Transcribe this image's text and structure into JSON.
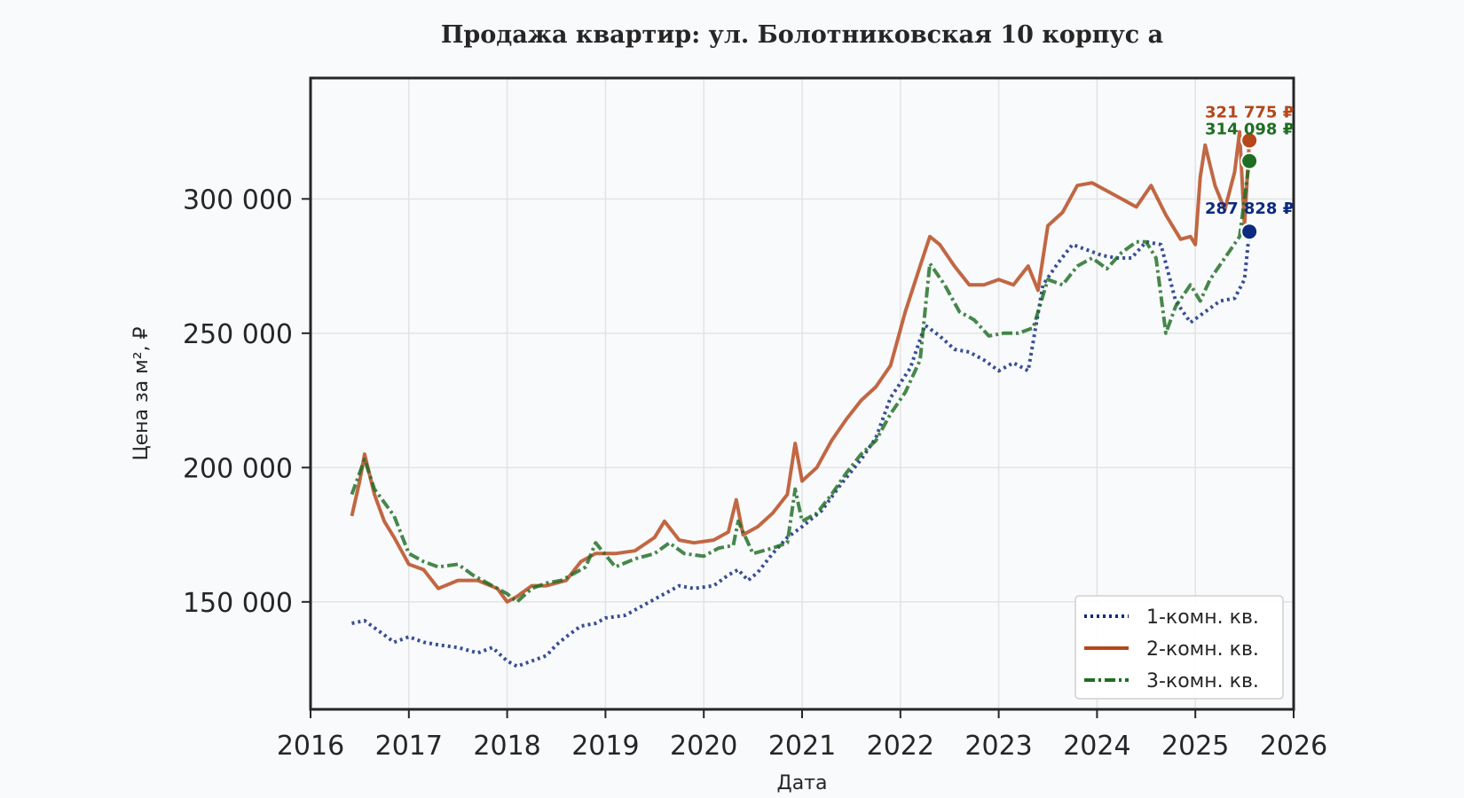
{
  "chart_data": {
    "type": "line",
    "title": "Продажа квартир: ул. Болотниковская 10 корпус а",
    "xlabel": "Дата",
    "ylabel": "Цена за м², ₽",
    "xlim": [
      2016,
      2026
    ],
    "ylim": [
      110000,
      345000
    ],
    "xticks": [
      2016,
      2017,
      2018,
      2019,
      2020,
      2021,
      2022,
      2023,
      2024,
      2025,
      2026
    ],
    "xtick_labels": [
      "2016",
      "2017",
      "2018",
      "2019",
      "2020",
      "2021",
      "2022",
      "2023",
      "2024",
      "2025",
      "2026"
    ],
    "yticks": [
      150000,
      200000,
      250000,
      300000
    ],
    "ytick_labels": [
      "150 000",
      "200 000",
      "250 000",
      "300 000"
    ],
    "grid": true,
    "legend_position": "bottom-right",
    "series": [
      {
        "name": "1-комн. кв.",
        "color": "#0d2a7e",
        "dash": "dotted",
        "x": [
          2016.42,
          2016.55,
          2016.7,
          2016.85,
          2017.0,
          2017.15,
          2017.3,
          2017.5,
          2017.7,
          2017.85,
          2018.0,
          2018.1,
          2018.25,
          2018.4,
          2018.5,
          2018.6,
          2018.75,
          2018.9,
          2019.0,
          2019.2,
          2019.4,
          2019.6,
          2019.75,
          2019.9,
          2020.1,
          2020.25,
          2020.35,
          2020.45,
          2020.55,
          2020.7,
          2020.85,
          2021.0,
          2021.2,
          2021.4,
          2021.6,
          2021.75,
          2021.9,
          2022.1,
          2022.25,
          2022.4,
          2022.55,
          2022.7,
          2022.85,
          2023.0,
          2023.15,
          2023.3,
          2023.45,
          2023.6,
          2023.75,
          2023.9,
          2024.05,
          2024.2,
          2024.35,
          2024.5,
          2024.65,
          2024.8,
          2024.95,
          2025.1,
          2025.25,
          2025.4,
          2025.5,
          2025.55
        ],
        "values": [
          142000,
          143000,
          139000,
          135000,
          137000,
          135000,
          134000,
          133000,
          131000,
          133000,
          128000,
          126000,
          128000,
          130000,
          134000,
          137000,
          141000,
          142000,
          144000,
          145000,
          149000,
          153000,
          156000,
          155000,
          156000,
          160000,
          162000,
          158000,
          161000,
          168000,
          174000,
          178000,
          184000,
          194000,
          203000,
          211000,
          226000,
          237000,
          253000,
          249000,
          244000,
          243000,
          240000,
          236000,
          239000,
          236000,
          268000,
          276000,
          283000,
          281000,
          279000,
          278000,
          278000,
          284000,
          283000,
          262000,
          254000,
          258000,
          262000,
          263000,
          270000,
          287828
        ]
      },
      {
        "name": "2-комн. кв.",
        "color": "#b5471a",
        "dash": "solid",
        "x": [
          2016.42,
          2016.5,
          2016.55,
          2016.65,
          2016.75,
          2016.85,
          2017.0,
          2017.15,
          2017.3,
          2017.5,
          2017.7,
          2017.9,
          2018.0,
          2018.1,
          2018.25,
          2018.4,
          2018.6,
          2018.75,
          2018.9,
          2019.1,
          2019.3,
          2019.5,
          2019.6,
          2019.75,
          2019.9,
          2020.1,
          2020.25,
          2020.33,
          2020.4,
          2020.55,
          2020.7,
          2020.85,
          2020.93,
          2021.0,
          2021.15,
          2021.3,
          2021.45,
          2021.6,
          2021.75,
          2021.9,
          2022.05,
          2022.2,
          2022.3,
          2022.4,
          2022.55,
          2022.7,
          2022.85,
          2023.0,
          2023.15,
          2023.3,
          2023.4,
          2023.5,
          2023.65,
          2023.8,
          2023.95,
          2024.1,
          2024.25,
          2024.4,
          2024.55,
          2024.7,
          2024.85,
          2024.95,
          2025.0,
          2025.05,
          2025.1,
          2025.2,
          2025.3,
          2025.4,
          2025.45,
          2025.5,
          2025.55
        ],
        "values": [
          182000,
          195000,
          205000,
          190000,
          180000,
          174000,
          164000,
          162000,
          155000,
          158000,
          158000,
          155000,
          150000,
          152000,
          156000,
          156000,
          158000,
          165000,
          168000,
          168000,
          169000,
          174000,
          180000,
          173000,
          172000,
          173000,
          176000,
          188000,
          175000,
          178000,
          183000,
          190000,
          209000,
          195000,
          200000,
          210000,
          218000,
          225000,
          230000,
          238000,
          258000,
          275000,
          286000,
          283000,
          275000,
          268000,
          268000,
          270000,
          268000,
          275000,
          266000,
          290000,
          295000,
          305000,
          306000,
          303000,
          300000,
          297000,
          305000,
          294000,
          285000,
          286000,
          283000,
          308000,
          320000,
          305000,
          296000,
          310000,
          325000,
          290000,
          321775
        ]
      },
      {
        "name": "3-комн. кв.",
        "color": "#1e6e23",
        "dash": "dashdot",
        "x": [
          2016.42,
          2016.55,
          2016.65,
          2016.75,
          2016.85,
          2017.0,
          2017.15,
          2017.3,
          2017.5,
          2017.65,
          2017.8,
          2018.0,
          2018.1,
          2018.25,
          2018.4,
          2018.55,
          2018.7,
          2018.8,
          2018.9,
          2019.1,
          2019.3,
          2019.5,
          2019.65,
          2019.8,
          2020.0,
          2020.15,
          2020.3,
          2020.35,
          2020.5,
          2020.7,
          2020.85,
          2020.93,
          2021.0,
          2021.15,
          2021.3,
          2021.45,
          2021.6,
          2021.75,
          2021.9,
          2022.05,
          2022.2,
          2022.3,
          2022.45,
          2022.6,
          2022.75,
          2022.9,
          2023.05,
          2023.2,
          2023.35,
          2023.5,
          2023.65,
          2023.8,
          2023.95,
          2024.1,
          2024.25,
          2024.4,
          2024.5,
          2024.6,
          2024.7,
          2024.8,
          2024.95,
          2025.05,
          2025.15,
          2025.3,
          2025.45,
          2025.55
        ],
        "values": [
          190000,
          203000,
          192000,
          187000,
          182000,
          168000,
          165000,
          163000,
          164000,
          160000,
          157000,
          153000,
          150000,
          155000,
          157000,
          158000,
          161000,
          163000,
          172000,
          163000,
          166000,
          168000,
          172000,
          168000,
          167000,
          170000,
          171000,
          180000,
          168000,
          170000,
          172000,
          192000,
          180000,
          183000,
          190000,
          198000,
          205000,
          210000,
          220000,
          228000,
          240000,
          276000,
          268000,
          258000,
          255000,
          249000,
          250000,
          250000,
          252000,
          270000,
          268000,
          275000,
          278000,
          274000,
          280000,
          284000,
          284000,
          278000,
          250000,
          260000,
          268000,
          262000,
          270000,
          278000,
          286000,
          314098
        ]
      }
    ],
    "end_labels": [
      "321 775 ₽",
      "314 098 ₽",
      "287 828 ₽"
    ]
  }
}
